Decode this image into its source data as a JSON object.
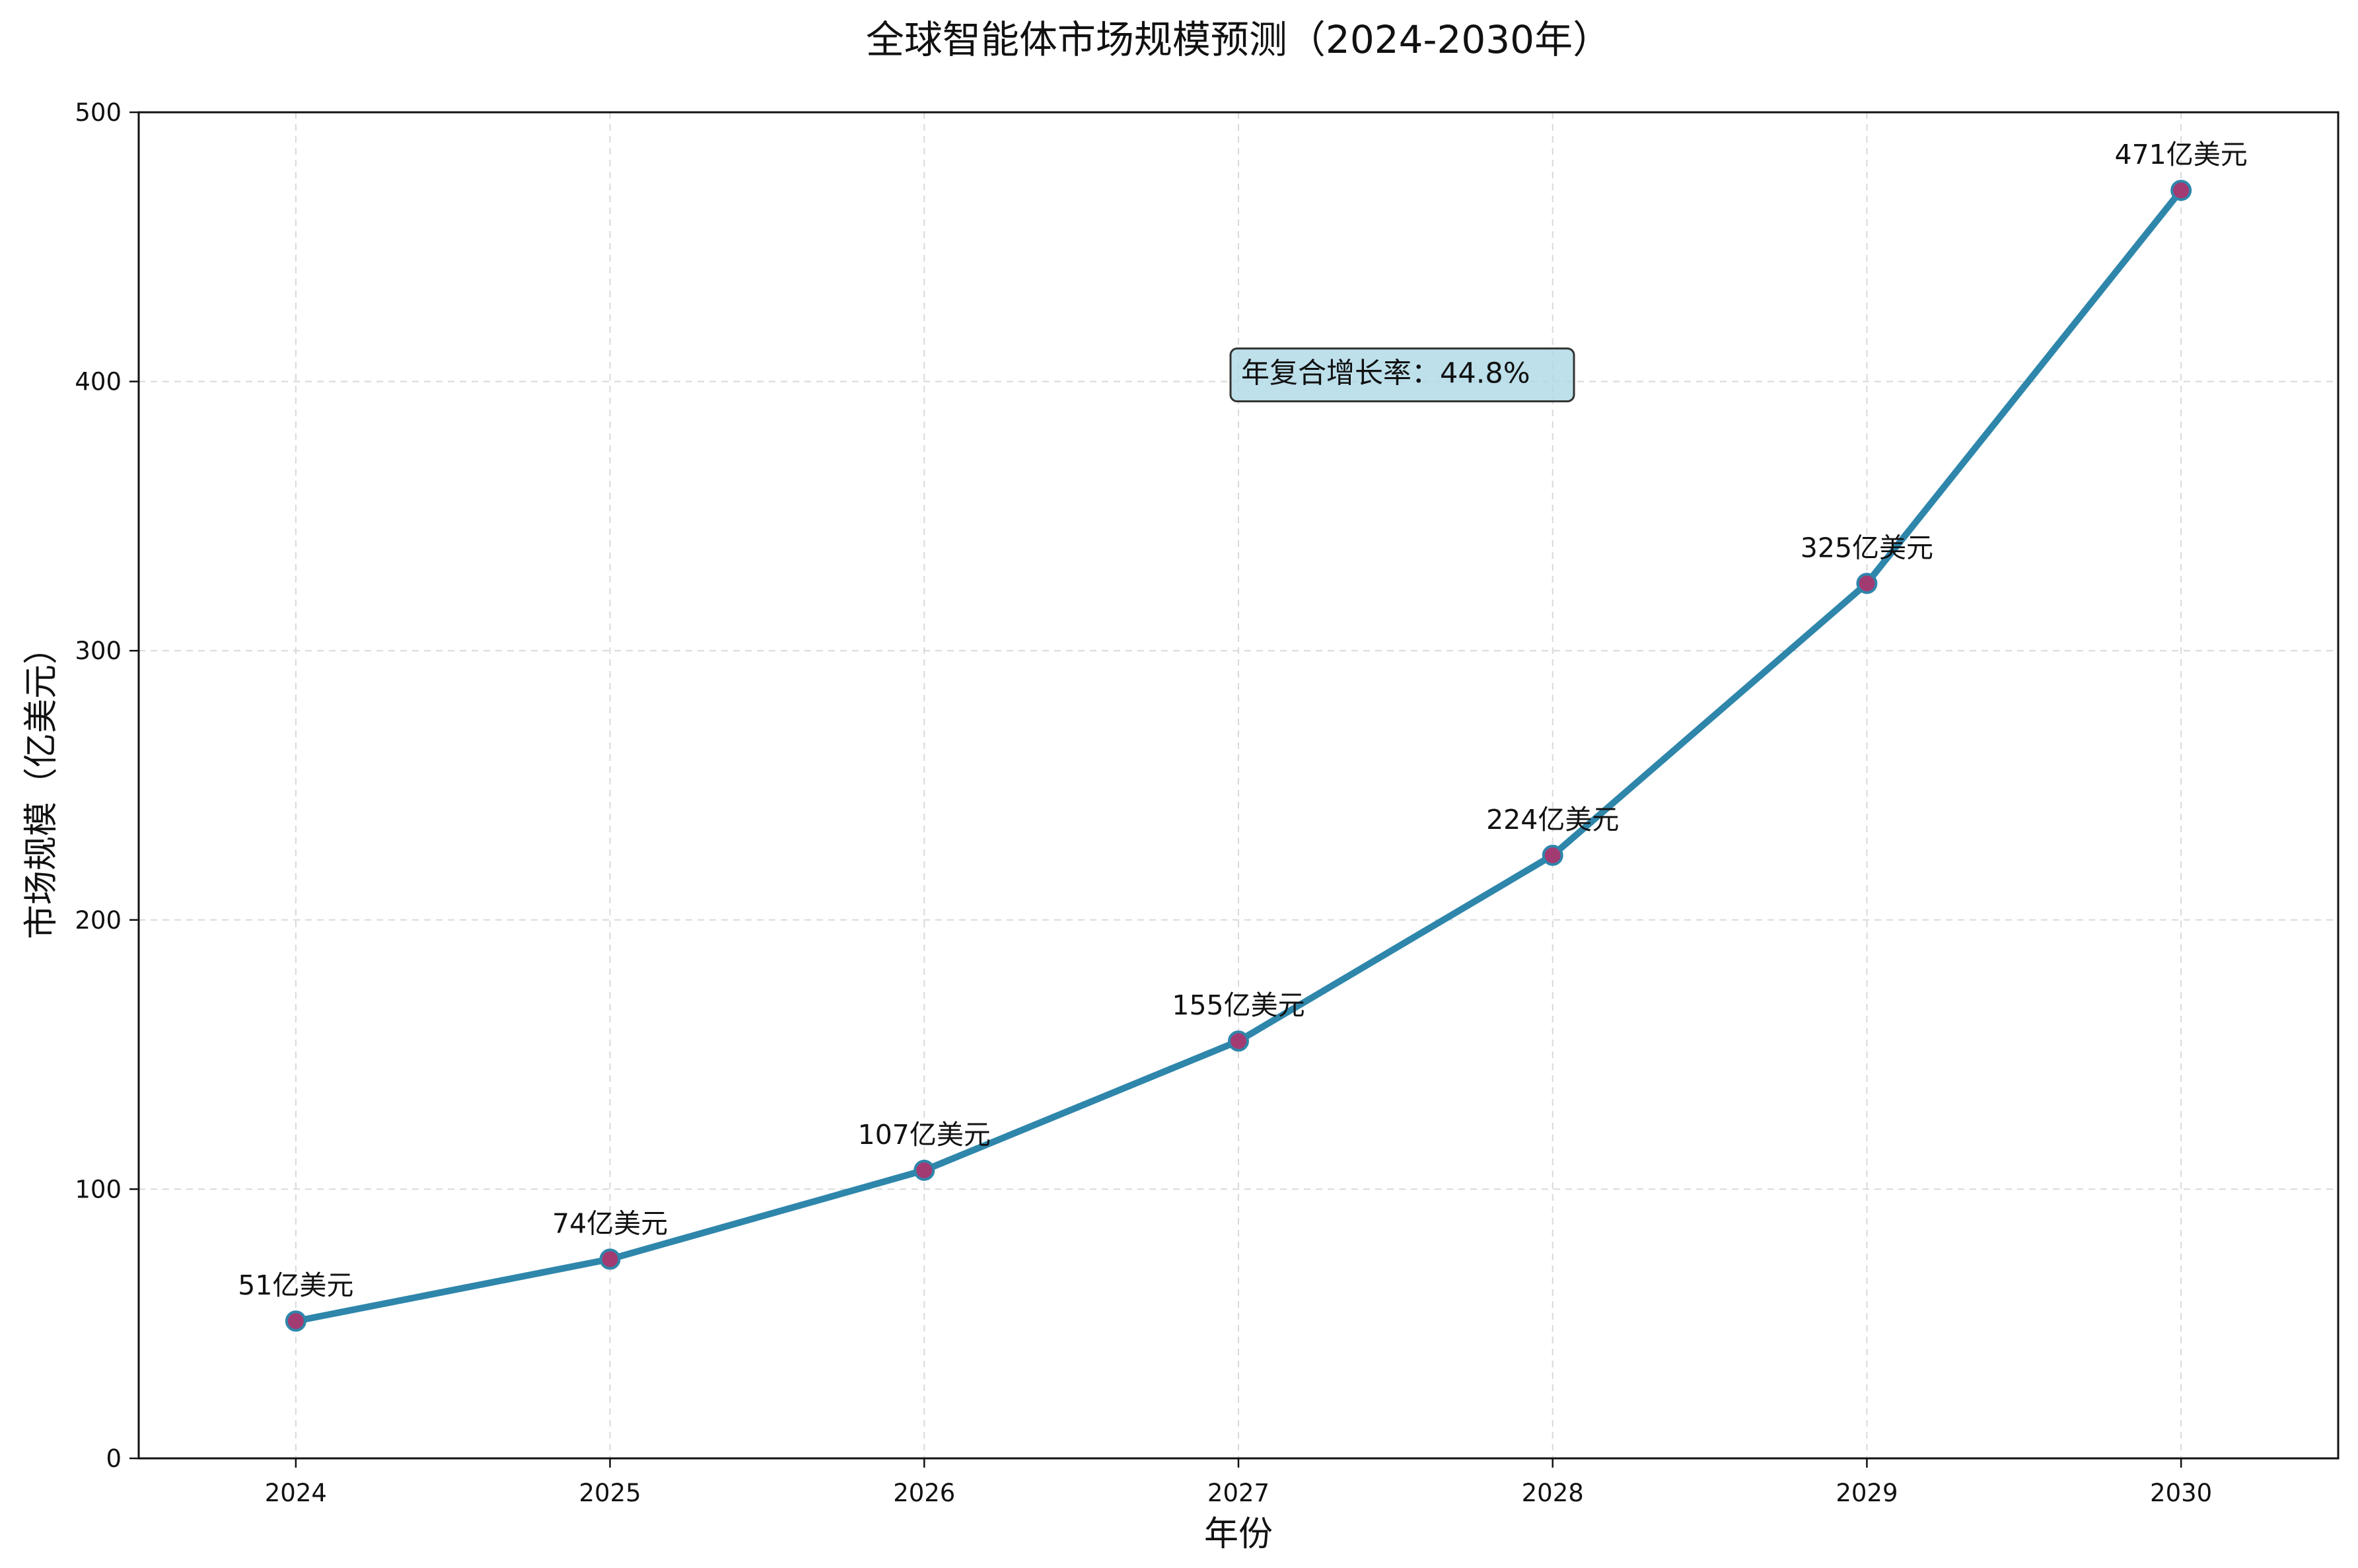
{
  "chart_data": {
    "type": "line",
    "title": "全球智能体市场规模预测（2024-2030年）",
    "xlabel": "年份",
    "ylabel": "市场规模（亿美元）",
    "categories": [
      "2024",
      "2025",
      "2026",
      "2027",
      "2028",
      "2029",
      "2030"
    ],
    "series": [
      {
        "name": "市场规模",
        "values": [
          51,
          74,
          107,
          155,
          224,
          325,
          471
        ],
        "labels": [
          "51亿美元",
          "74亿美元",
          "107亿美元",
          "155亿美元",
          "224亿美元",
          "325亿美元",
          "471亿美元"
        ]
      }
    ],
    "ylim": [
      0,
      500
    ],
    "yticks": [
      "0",
      "100",
      "200",
      "300",
      "400",
      "500"
    ],
    "xlim": [
      2023.5,
      2030.5
    ],
    "grid": true,
    "annotation": {
      "text": "年复合增长率：44.8%",
      "x": 2027,
      "y": 400
    },
    "colors": {
      "line": "#2e86ab",
      "marker_fill": "#a23b72",
      "marker_edge": "#2e86ab",
      "annotation_bg": "#add8e6",
      "grid": "#d9d9d9"
    }
  }
}
